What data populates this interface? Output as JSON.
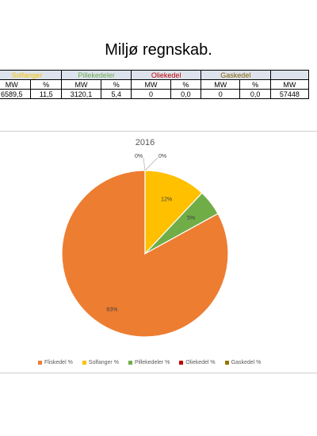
{
  "page": {
    "title": "Miljø regnskab."
  },
  "table": {
    "groups": [
      {
        "label": "Solfanger",
        "color": "#f5c400"
      },
      {
        "label": "Pillekedeler",
        "color": "#6aa84f"
      },
      {
        "label": "Oliekedel",
        "color": "#c00000"
      },
      {
        "label": "Gaskedel",
        "color": "#806000"
      }
    ],
    "subheaders": [
      "MW",
      "%",
      "MW",
      "%",
      "MW",
      "%",
      "MW",
      "%",
      "MW"
    ],
    "row": [
      "6589,5",
      "11,5",
      "3120,1",
      "5,4",
      "0",
      "0,0",
      "0",
      "0,0",
      "57448"
    ]
  },
  "chart_data": {
    "type": "pie",
    "title": "2016",
    "categories": [
      "Fliskedel %",
      "Solfanger %",
      "Pillekedeler %",
      "Oliekedel %",
      "Gaskedel %"
    ],
    "values": [
      83,
      12,
      5,
      0,
      0
    ],
    "labels": [
      "83%",
      "12%",
      "5%",
      "0%",
      "0%"
    ],
    "colors": [
      "#ed7d31",
      "#ffc000",
      "#70ad47",
      "#c00000",
      "#997300"
    ],
    "legend_position": "bottom"
  }
}
